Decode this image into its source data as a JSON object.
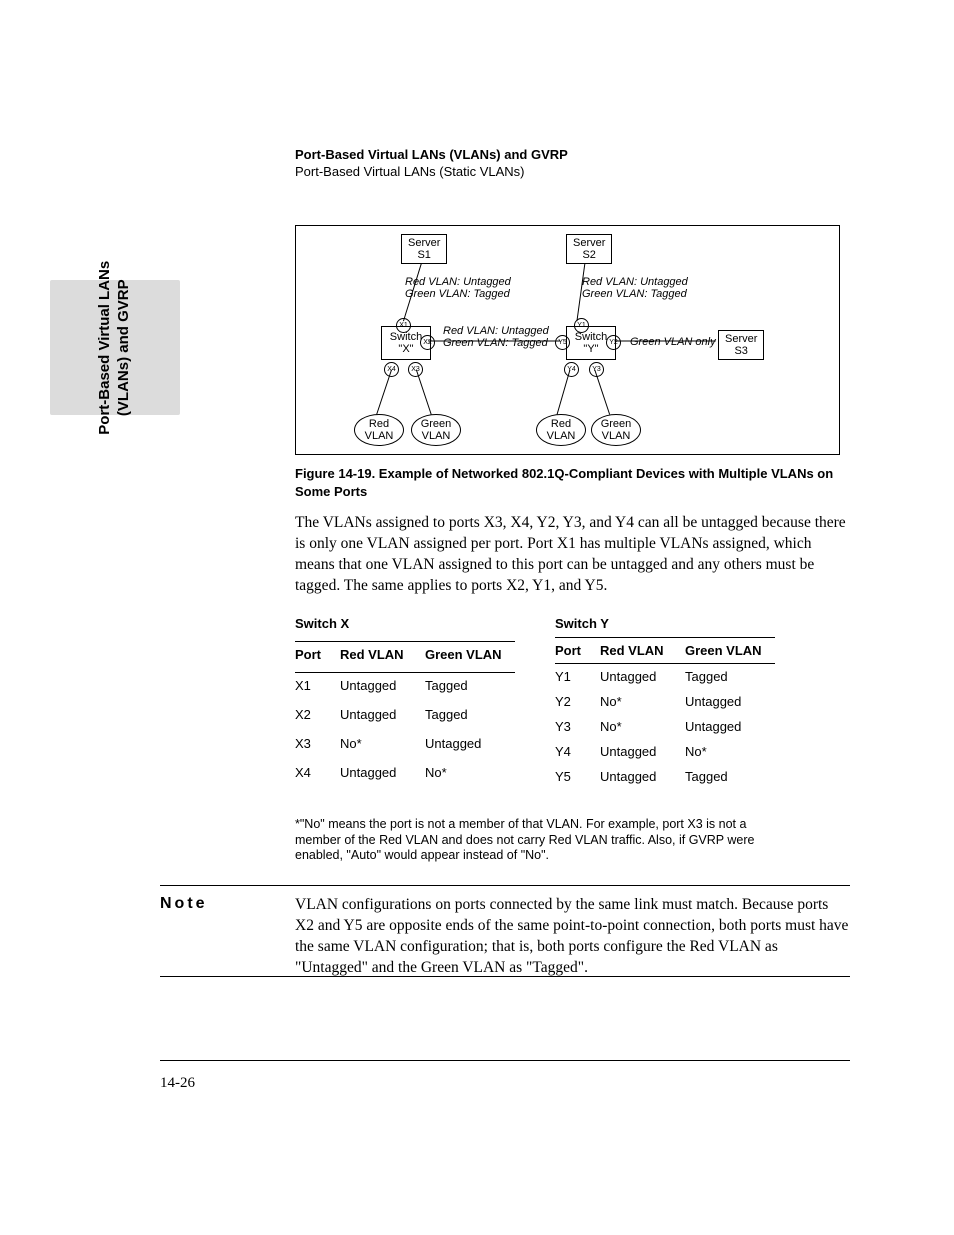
{
  "header": {
    "title": "Port-Based Virtual LANs (VLANs) and GVRP",
    "subtitle": "Port-Based Virtual LANs (Static VLANs)"
  },
  "side_tab": {
    "line1": "Port-Based Virtual LANs",
    "line2": "(VLANs) and GVRP"
  },
  "diagram": {
    "servers": {
      "s1": "Server\nS1",
      "s2": "Server\nS2",
      "s3": "Server\nS3"
    },
    "switches": {
      "x": "Switch\n\"X\"",
      "y": "Switch\n\"Y\""
    },
    "labels": {
      "s1link": "Red VLAN: Untagged\nGreen VLAN: Tagged",
      "s2link": "Red VLAN: Untagged\nGreen VLAN: Tagged",
      "interlink": "Red VLAN: Untagged\nGreen VLAN: Tagged",
      "s3link": "Green VLAN only"
    },
    "vlans": {
      "red": "Red\nVLAN",
      "green": "Green\nVLAN"
    },
    "ports": {
      "x1": "X1",
      "x2": "X2",
      "x3": "X3",
      "x4": "X4",
      "y1": "Y1",
      "y2": "Y2",
      "y3": "Y3",
      "y4": "Y4",
      "y5": "Y5"
    }
  },
  "figure_caption": "Figure 14-19.  Example of Networked 802.1Q-Compliant Devices with Multiple VLANs on Some Ports",
  "paragraph1": "The VLANs assigned to ports X3, X4, Y2, Y3, and Y4 can all be untagged because there is only one VLAN assigned per port. Port X1 has multiple VLANs assigned, which means that one VLAN assigned to this port can be untagged and any others must be tagged. The same applies to ports X2, Y1, and Y5.",
  "tables": {
    "left": {
      "title": "Switch X",
      "cols": [
        "Port",
        "Red VLAN",
        "Green VLAN"
      ],
      "rows": [
        [
          "X1",
          "Untagged",
          "Tagged"
        ],
        [
          "X2",
          "Untagged",
          "Tagged"
        ],
        [
          "X3",
          "No*",
          "Untagged"
        ],
        [
          "X4",
          "Untagged",
          "No*"
        ]
      ]
    },
    "right": {
      "title": "Switch Y",
      "cols": [
        "Port",
        "Red VLAN",
        "Green VLAN"
      ],
      "rows": [
        [
          "Y1",
          "Untagged",
          "Tagged"
        ],
        [
          "Y2",
          "No*",
          "Untagged"
        ],
        [
          "Y3",
          "No*",
          "Untagged"
        ],
        [
          "Y4",
          "Untagged",
          "No*"
        ],
        [
          "Y5",
          "Untagged",
          "Tagged"
        ]
      ]
    }
  },
  "footnote": "*\"No\" means the port is not a member of that VLAN. For example, port X3 is not a member of the Red VLAN and does not carry Red VLAN traffic. Also, if GVRP were enabled, \"Auto\" would appear instead of \"No\".",
  "note_label": "Note",
  "note_body": "VLAN configurations on ports connected by the same link must match. Because ports X2 and Y5 are opposite ends of the same point-to-point connection, both ports must have the same VLAN configuration; that is, both ports configure the Red VLAN as \"Untagged\" and the Green VLAN as \"Tagged\".",
  "page_number": "14-26",
  "colors": {
    "text": "#000000",
    "tab_bg": "#dcdcdc"
  }
}
